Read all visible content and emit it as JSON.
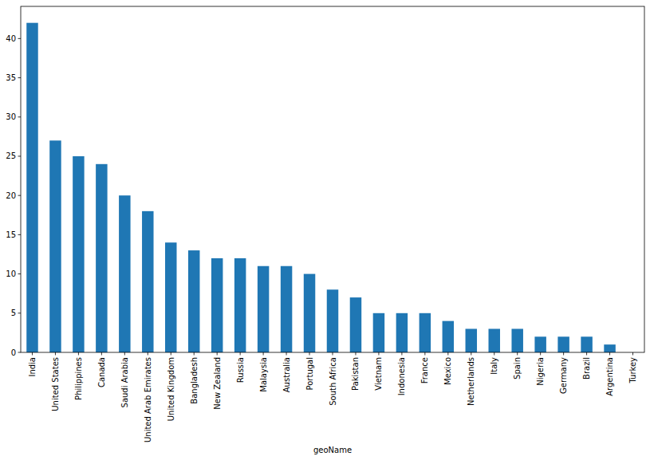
{
  "chart_data": {
    "type": "bar",
    "x_label": "geoName",
    "categories": [
      "India",
      "United States",
      "Philippines",
      "Canada",
      "Saudi Arabia",
      "United Arab Emirates",
      "United Kingdom",
      "Bangladesh",
      "New Zealand",
      "Russia",
      "Malaysia",
      "Australia",
      "Portugal",
      "South Africa",
      "Pakistan",
      "Vietnam",
      "Indonesia",
      "France",
      "Mexico",
      "Netherlands",
      "Italy",
      "Spain",
      "Nigeria",
      "Germany",
      "Brazil",
      "Argentina",
      "Turkey"
    ],
    "values": [
      42,
      27,
      25,
      24,
      20,
      18,
      14,
      13,
      12,
      12,
      11,
      11,
      10,
      8,
      7,
      5,
      5,
      5,
      4,
      3,
      3,
      3,
      2,
      2,
      2,
      1,
      0
    ],
    "color": "#1f77b4",
    "ylim": [
      0,
      44.1
    ],
    "yticks": [
      0,
      5,
      10,
      15,
      20,
      25,
      30,
      35,
      40
    ],
    "grid": false
  }
}
